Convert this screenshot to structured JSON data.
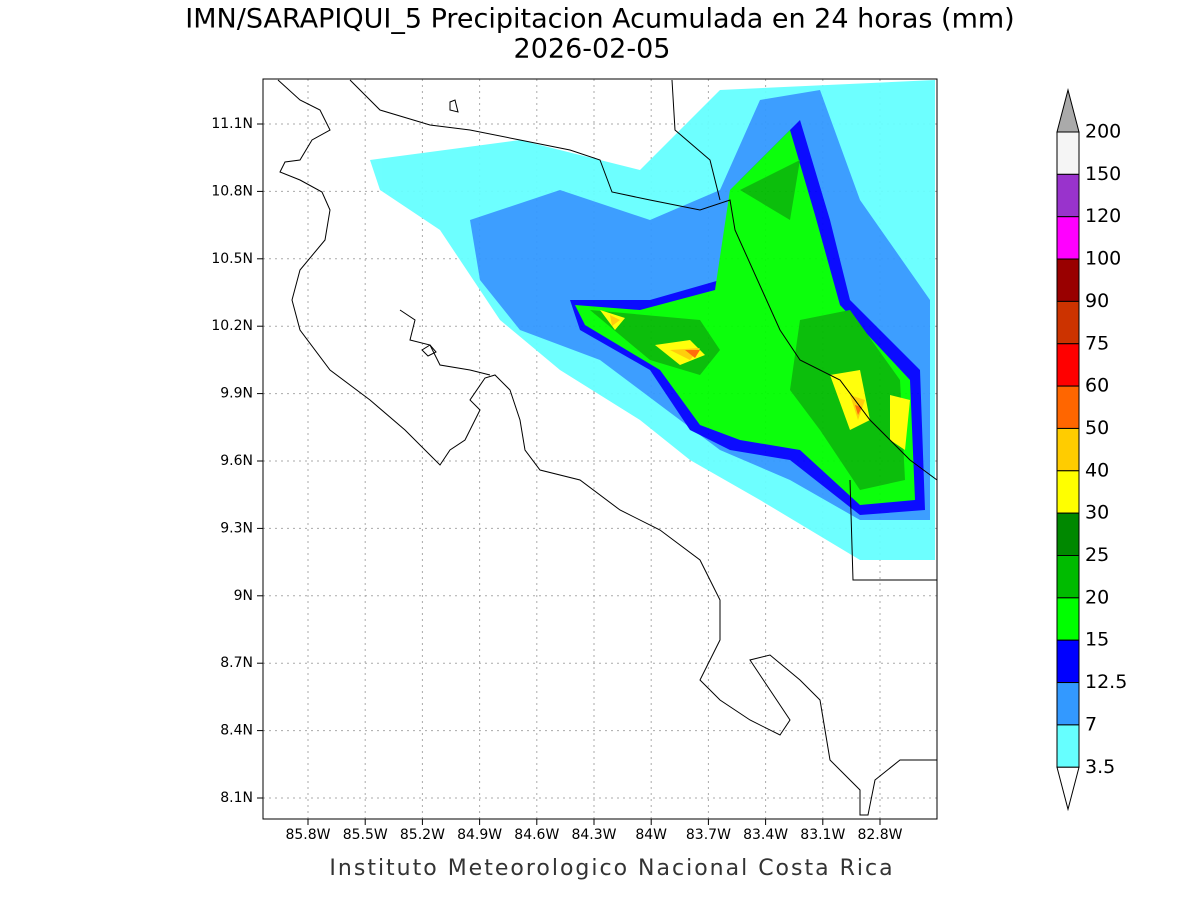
{
  "header": {
    "title": "IMN/SARAPIQUI_5 Precipitacion Acumulada en 24 horas (mm)",
    "date": "2026-02-05"
  },
  "map": {
    "lon_labels": [
      "85.8W",
      "85.5W",
      "85.2W",
      "84.9W",
      "84.6W",
      "84.3W",
      "84W",
      "83.7W",
      "83.4W",
      "83.1W",
      "82.8W"
    ],
    "lat_labels": [
      "11.1N",
      "10.8N",
      "10.5N",
      "10.2N",
      "9.9N",
      "9.6N",
      "9.3N",
      "9N",
      "8.7N",
      "8.4N",
      "8.1N"
    ]
  },
  "colorbar": {
    "levels": [
      200,
      150,
      120,
      100,
      90,
      75,
      60,
      50,
      40,
      30,
      25,
      20,
      15,
      12.5,
      7,
      3.5
    ],
    "colors": [
      "#f5f5f5",
      "#9933cc",
      "#ff00ff",
      "#990000",
      "#cc3300",
      "#ff0000",
      "#ff6600",
      "#ffcc00",
      "#ffff00",
      "#008800",
      "#00bb00",
      "#00ff00",
      "#0000ff",
      "#3399ff",
      "#66ffff"
    ],
    "over_color": "#aaaaaa",
    "under_color": "#ffffff"
  },
  "footer": "Instituto Meteorologico Nacional Costa Rica"
}
